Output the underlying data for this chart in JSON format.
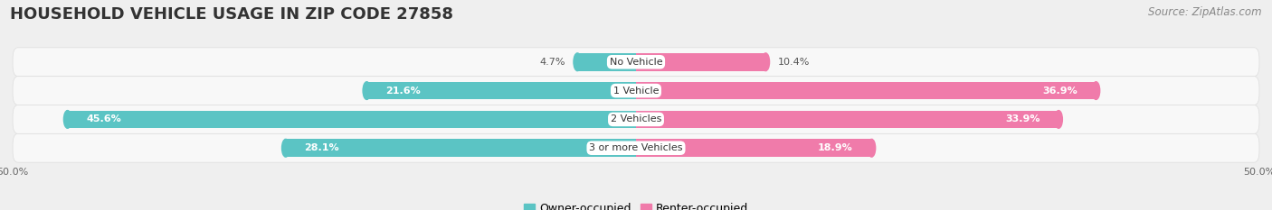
{
  "title": "HOUSEHOLD VEHICLE USAGE IN ZIP CODE 27858",
  "source": "Source: ZipAtlas.com",
  "categories": [
    "No Vehicle",
    "1 Vehicle",
    "2 Vehicles",
    "3 or more Vehicles"
  ],
  "owner_values": [
    4.7,
    21.6,
    45.6,
    28.1
  ],
  "renter_values": [
    10.4,
    36.9,
    33.9,
    18.9
  ],
  "owner_color": "#5BC4C4",
  "renter_color": "#F07BAA",
  "bg_color": "#EFEFEF",
  "row_bg_color": "#F8F8F8",
  "axis_limit": 50.0,
  "title_fontsize": 13,
  "source_fontsize": 8.5,
  "label_fontsize": 8,
  "value_fontsize": 8,
  "legend_fontsize": 9,
  "bar_height": 0.62,
  "owner_label_color_inside": "#FFFFFF",
  "owner_label_color_outside": "#555555",
  "renter_label_color_inside": "#FFFFFF",
  "renter_label_color_outside": "#555555"
}
